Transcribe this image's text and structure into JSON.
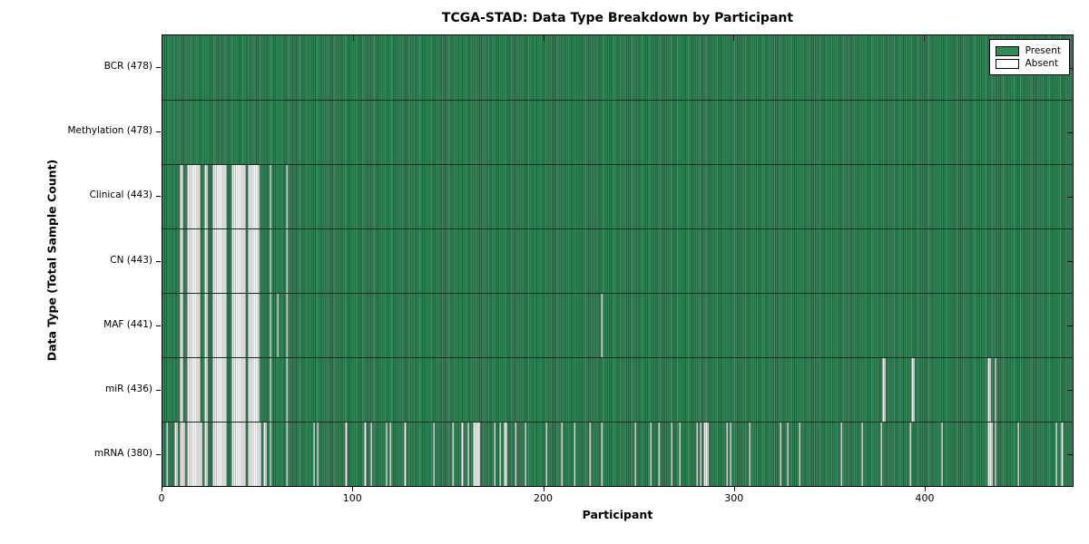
{
  "figure": {
    "title": "TCGA-STAD: Data Type Breakdown by Participant",
    "xlabel": "Participant",
    "ylabel": "Data Type (Total Sample Count)"
  },
  "colors": {
    "present": "#2e8b57",
    "absent": "#ffffff",
    "edge": "#000000",
    "background": "#ffffff"
  },
  "chart_data": {
    "type": "heatmap",
    "title": "TCGA-STAD: Data Type Breakdown by Participant",
    "xlabel": "Participant",
    "ylabel": "Data Type (Total Sample Count)",
    "x_ticks": [
      0,
      100,
      200,
      300,
      400
    ],
    "xlim": [
      0,
      478
    ],
    "n_participants": 478,
    "grid": false,
    "legend_position": "upper right",
    "legend": [
      {
        "label": "Present",
        "color": "#2e8b57"
      },
      {
        "label": "Absent",
        "color": "#ffffff"
      }
    ],
    "rows": [
      {
        "label": "BCR",
        "total": 478,
        "tick_label": "BCR (478)",
        "absent": []
      },
      {
        "label": "Methylation",
        "total": 478,
        "tick_label": "Methylation (478)",
        "absent": []
      },
      {
        "label": "Clinical",
        "total": 443,
        "tick_label": "Clinical (443)",
        "absent": [
          9,
          10,
          13,
          14,
          15,
          16,
          17,
          18,
          19,
          22,
          23,
          26,
          27,
          28,
          29,
          30,
          31,
          32,
          33,
          36,
          37,
          38,
          39,
          40,
          41,
          42,
          43,
          45,
          46,
          47,
          48,
          49,
          50,
          56,
          65
        ]
      },
      {
        "label": "CN",
        "total": 443,
        "tick_label": "CN (443)",
        "absent": [
          9,
          10,
          13,
          14,
          15,
          16,
          17,
          18,
          19,
          22,
          23,
          26,
          27,
          28,
          29,
          30,
          31,
          32,
          33,
          36,
          37,
          38,
          39,
          40,
          41,
          42,
          43,
          45,
          46,
          47,
          48,
          49,
          50,
          56,
          65
        ]
      },
      {
        "label": "MAF",
        "total": 441,
        "tick_label": "MAF (441)",
        "absent": [
          9,
          10,
          13,
          14,
          15,
          16,
          17,
          18,
          19,
          22,
          23,
          26,
          27,
          28,
          29,
          30,
          31,
          32,
          33,
          36,
          37,
          38,
          39,
          40,
          41,
          42,
          43,
          45,
          46,
          47,
          48,
          49,
          50,
          56,
          60,
          65,
          230
        ]
      },
      {
        "label": "miR",
        "total": 436,
        "tick_label": "miR (436)",
        "absent": [
          9,
          10,
          13,
          14,
          15,
          16,
          17,
          18,
          19,
          22,
          23,
          26,
          27,
          28,
          29,
          30,
          31,
          32,
          33,
          36,
          37,
          38,
          39,
          40,
          41,
          42,
          43,
          45,
          46,
          47,
          48,
          49,
          50,
          56,
          65,
          378,
          379,
          393,
          394,
          433,
          434,
          437
        ]
      },
      {
        "label": "mRNA",
        "total": 380,
        "tick_label": "mRNA (380)",
        "absent": [
          2,
          6,
          7,
          9,
          10,
          11,
          13,
          14,
          15,
          16,
          17,
          18,
          19,
          20,
          22,
          23,
          26,
          27,
          28,
          29,
          30,
          31,
          32,
          33,
          36,
          37,
          38,
          39,
          40,
          41,
          42,
          43,
          45,
          46,
          47,
          48,
          49,
          50,
          51,
          53,
          54,
          56,
          65,
          79,
          81,
          96,
          106,
          109,
          117,
          119,
          127,
          142,
          152,
          157,
          160,
          163,
          164,
          165,
          166,
          174,
          177,
          179,
          180,
          185,
          190,
          201,
          209,
          216,
          224,
          230,
          248,
          256,
          260,
          267,
          271,
          280,
          282,
          284,
          285,
          286,
          296,
          298,
          308,
          324,
          328,
          334,
          356,
          367,
          377,
          392,
          409,
          433,
          434,
          435,
          437,
          449,
          469,
          472
        ]
      }
    ]
  }
}
